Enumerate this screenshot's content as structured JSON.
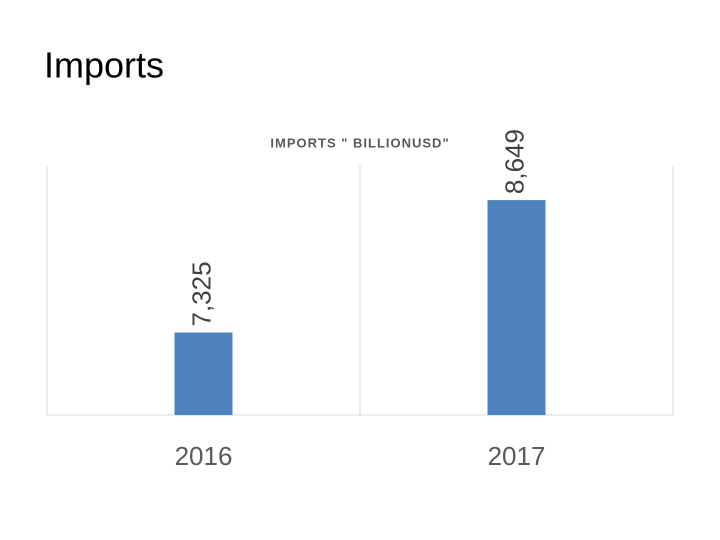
{
  "title": "Imports",
  "chart_data": {
    "type": "bar",
    "title": "IMPORTS \" BILLIONUSD\"",
    "categories": [
      "2016",
      "2017"
    ],
    "values": [
      7325,
      8649
    ],
    "value_labels": [
      "7,325",
      "8,649"
    ],
    "color": "#4f81bd",
    "ylim": [
      6500,
      9000
    ]
  }
}
